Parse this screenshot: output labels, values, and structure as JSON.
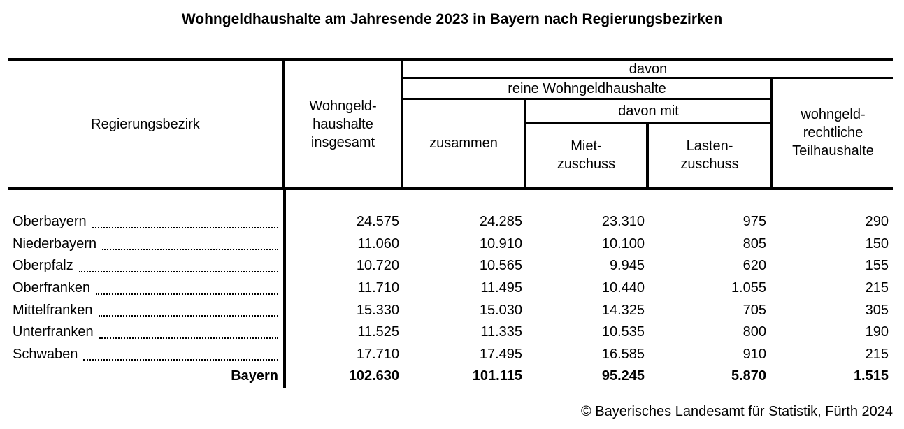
{
  "title": "Wohngeldhaushalte am Jahresende 2023 in Bayern nach Regierungsbezirken",
  "table": {
    "header": {
      "regierungsbezirk": "Regierungsbezirk",
      "insgesamt": "Wohngeld-\nhaushalte\ninsgesamt",
      "davon": "davon",
      "reine": "reine Wohngeldhaushalte",
      "zusammen": "zusammen",
      "davon_mit": "davon mit",
      "miet": "Miet-\nzuschuss",
      "lasten": "Lasten-\nzuschuss",
      "teilhaushalte": "wohngeld-\nrechtliche\nTeilhaushalte"
    },
    "rows": [
      {
        "name": "Oberbayern",
        "insgesamt": "24.575",
        "zusammen": "24.285",
        "miet": "23.310",
        "lasten": "975",
        "teil": "290"
      },
      {
        "name": "Niederbayern",
        "insgesamt": "11.060",
        "zusammen": "10.910",
        "miet": "10.100",
        "lasten": "805",
        "teil": "150"
      },
      {
        "name": "Oberpfalz",
        "insgesamt": "10.720",
        "zusammen": "10.565",
        "miet": "9.945",
        "lasten": "620",
        "teil": "155"
      },
      {
        "name": "Oberfranken",
        "insgesamt": "11.710",
        "zusammen": "11.495",
        "miet": "10.440",
        "lasten": "1.055",
        "teil": "215"
      },
      {
        "name": "Mittelfranken",
        "insgesamt": "15.330",
        "zusammen": "15.030",
        "miet": "14.325",
        "lasten": "705",
        "teil": "305"
      },
      {
        "name": "Unterfranken",
        "insgesamt": "11.525",
        "zusammen": "11.335",
        "miet": "10.535",
        "lasten": "800",
        "teil": "190"
      },
      {
        "name": "Schwaben",
        "insgesamt": "17.710",
        "zusammen": "17.495",
        "miet": "16.585",
        "lasten": "910",
        "teil": "215"
      }
    ],
    "total": {
      "name": "Bayern",
      "insgesamt": "102.630",
      "zusammen": "101.115",
      "miet": "95.245",
      "lasten": "5.870",
      "teil": "1.515"
    }
  },
  "footer": "© Bayerisches Landesamt für Statistik, Fürth 2024"
}
